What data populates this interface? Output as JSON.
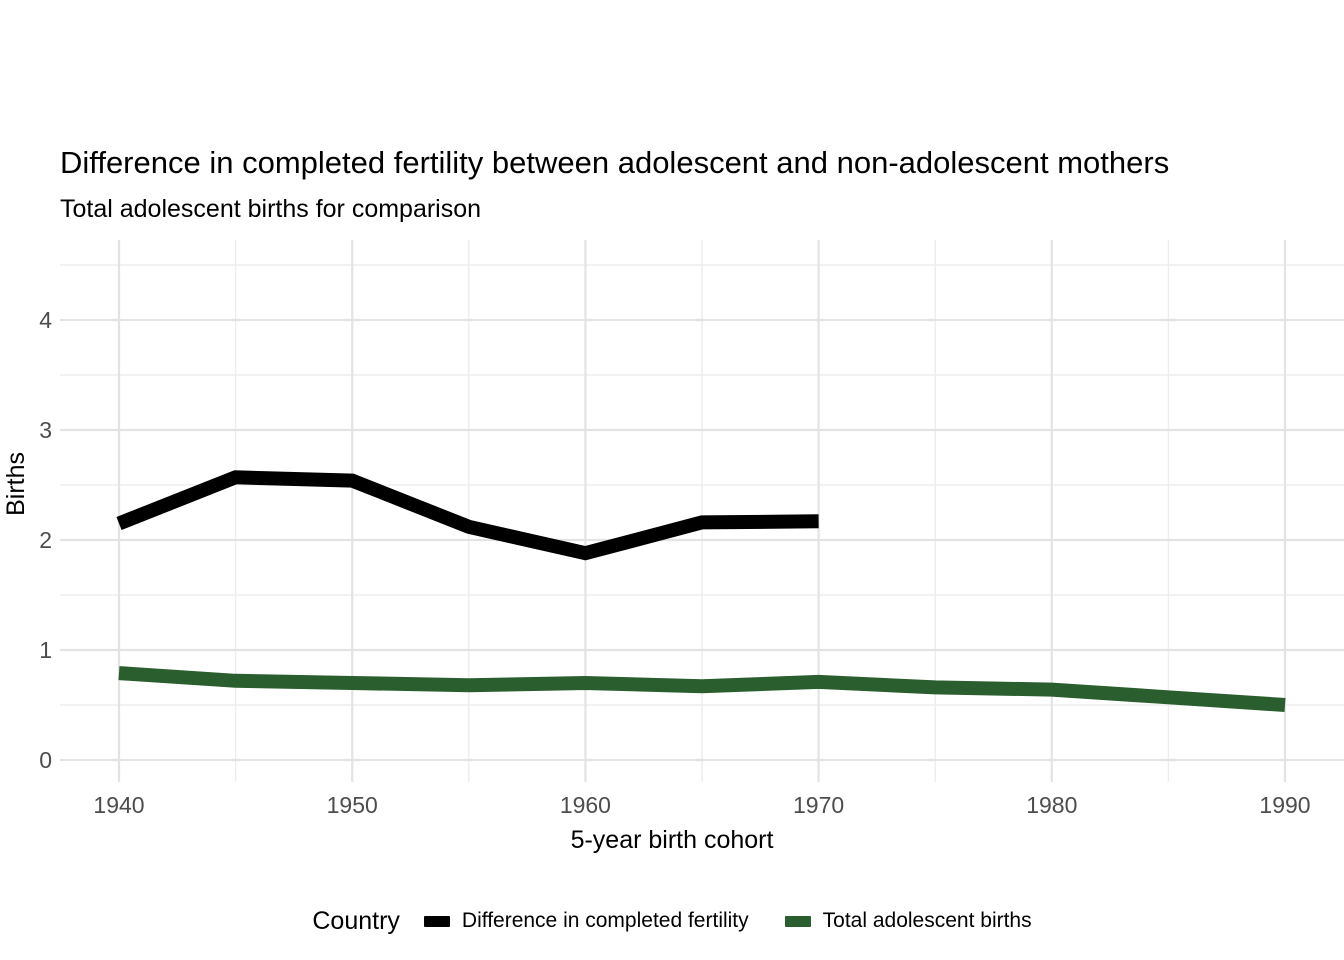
{
  "title": "Difference in completed fertility between adolescent and non-adolescent mothers",
  "subtitle": "Total adolescent births for comparison",
  "chart_data": {
    "type": "line",
    "title": "Difference in completed fertility between adolescent and non-adolescent mothers",
    "subtitle": "Total adolescent births for comparison",
    "xlabel": "5-year birth cohort",
    "ylabel": "Births",
    "legend_title": "Country",
    "legend_position": "bottom",
    "grid": true,
    "xlim": [
      1937.6,
      1992.5
    ],
    "ylim": [
      -0.2,
      4.73
    ],
    "x_ticks": [
      1940,
      1950,
      1960,
      1970,
      1980,
      1990
    ],
    "x_minor_gridlines": [
      1945,
      1955,
      1965,
      1975,
      1985
    ],
    "y_ticks": [
      0,
      1,
      2,
      3,
      4
    ],
    "y_minor_gridlines": [
      0.5,
      1.5,
      2.5,
      3.5,
      4.5
    ],
    "series": [
      {
        "name": "Difference in completed fertility",
        "color": "#000000",
        "x": [
          1940,
          1945,
          1950,
          1955,
          1960,
          1965,
          1970
        ],
        "values": [
          2.15,
          2.57,
          2.54,
          2.12,
          1.88,
          2.16,
          2.17
        ]
      },
      {
        "name": "Total adolescent births",
        "color": "#2B5E2E",
        "x": [
          1940,
          1945,
          1950,
          1955,
          1960,
          1965,
          1970,
          1975,
          1980,
          1985,
          1990
        ],
        "values": [
          0.79,
          0.72,
          0.7,
          0.68,
          0.7,
          0.67,
          0.71,
          0.66,
          0.64,
          0.57,
          0.5
        ]
      }
    ]
  },
  "colors": {
    "background": "#FFFFFF",
    "grid_major": "#E3E3E3",
    "grid_minor": "#EDEDED",
    "tick_label": "#4D4D4D"
  }
}
